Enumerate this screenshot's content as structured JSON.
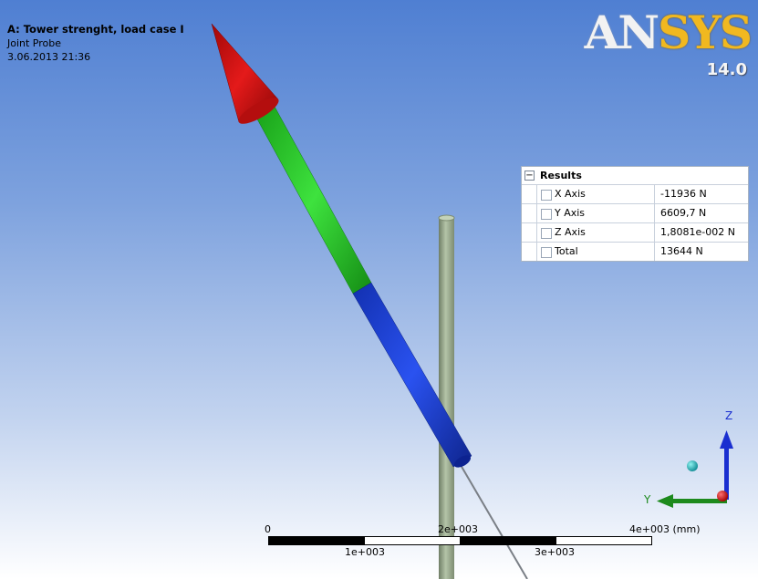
{
  "viewport": {
    "title": "A: Tower strenght, load case I",
    "subtitle": "Joint Probe",
    "timestamp": "3.06.2013 21:36"
  },
  "logo": {
    "brand_a": "AN",
    "brand_b": "SYS",
    "version": "14.0"
  },
  "results": {
    "collapse_symbol": "−",
    "title": "Results",
    "rows": [
      {
        "label": "X Axis",
        "value": "-11936 N"
      },
      {
        "label": "Y Axis",
        "value": "6609,7 N"
      },
      {
        "label": "Z Axis",
        "value": "1,8081e-002 N"
      },
      {
        "label": "Total",
        "value": "13644 N"
      }
    ]
  },
  "scale": {
    "top_labels": [
      "0",
      "2e+003",
      "4e+003 (mm)"
    ],
    "bottom_labels": [
      "1e+003",
      "3e+003"
    ]
  },
  "triad": {
    "z_label": "Z",
    "y_label": "Y"
  },
  "colors": {
    "arrow_head": "#d01010",
    "shaft_green": "#22c422",
    "shaft_blue": "#1f3fd8",
    "tower": "#9aac8e",
    "logo_sys": "#f1b820"
  }
}
